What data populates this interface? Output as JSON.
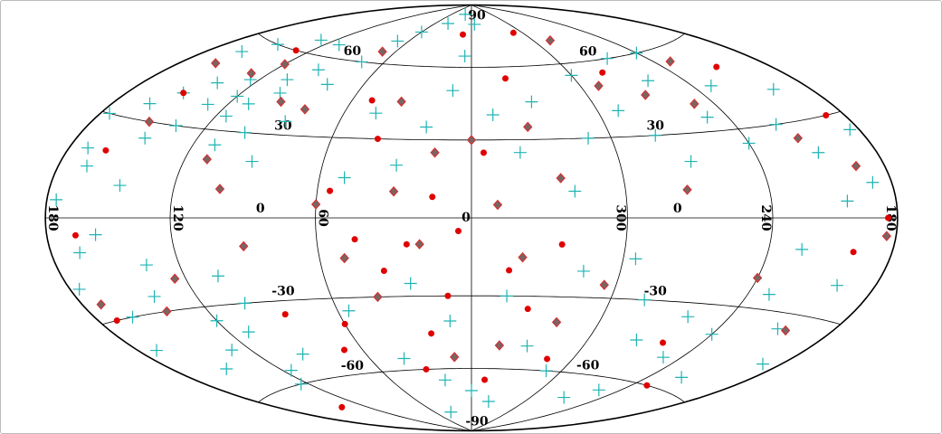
{
  "chart_data": {
    "type": "scatter",
    "projection": "hammer",
    "xticks": [
      {
        "value": 180,
        "label": "180"
      },
      120,
      60,
      0,
      {
        "value": -60,
        "label": "300"
      },
      {
        "value": -120,
        "label": "240"
      },
      {
        "value": -180,
        "label": "180"
      }
    ],
    "yticks": [
      90,
      60,
      30,
      0,
      -30,
      -60,
      -90
    ],
    "grid": true,
    "series": [
      {
        "marker": "cross",
        "color": "#1fb3b3",
        "x": [
          100,
          105,
          110,
          115,
          120,
          125,
          130,
          95,
          140,
          135,
          150,
          145,
          160,
          170,
          175,
          110,
          100,
          90,
          85,
          80,
          75,
          70,
          60,
          40,
          20,
          150,
          130,
          160,
          110,
          100,
          110,
          120,
          130,
          140,
          150,
          160,
          170,
          115,
          125,
          95,
          105,
          135,
          165,
          175,
          155,
          145,
          165,
          175,
          30,
          20,
          10,
          -10,
          -20,
          -30,
          45,
          50,
          -40,
          -50,
          25,
          10,
          -15,
          -30,
          40,
          55,
          -45,
          0,
          20,
          -20,
          35,
          -50,
          5,
          -5,
          -70,
          -80,
          -90,
          -100,
          -110,
          -120,
          -130,
          -140,
          -150,
          -160,
          -170,
          -175,
          -95,
          -120,
          -75,
          -85,
          -100,
          -110,
          -120,
          -130,
          -140,
          -150,
          -160,
          -170,
          -105,
          -90,
          -135,
          -155,
          -65,
          -60
        ],
        "y": [
          45,
          50,
          40,
          35,
          42,
          48,
          38,
          55,
          45,
          30,
          40,
          25,
          35,
          20,
          30,
          25,
          30,
          20,
          35,
          50,
          60,
          70,
          75,
          80,
          85,
          60,
          65,
          55,
          65,
          -30,
          -40,
          -35,
          -45,
          -25,
          -50,
          -30,
          -40,
          -55,
          -60,
          -50,
          -20,
          -15,
          -10,
          -20,
          -5,
          10,
          15,
          5,
          20,
          35,
          50,
          40,
          25,
          45,
          40,
          15,
          10,
          30,
          -25,
          -40,
          -30,
          -50,
          -55,
          -35,
          -20,
          -70,
          -65,
          -75,
          -80,
          -60,
          65,
          80,
          40,
          30,
          20,
          50,
          35,
          25,
          45,
          30,
          20,
          40,
          10,
          25,
          60,
          60,
          -30,
          -45,
          -35,
          -50,
          -40,
          -25,
          -55,
          -35,
          -20,
          -45,
          -65,
          -70,
          -10,
          5,
          -15,
          55
        ]
      },
      {
        "marker": "diamond",
        "color": "#7a6464",
        "edge": "#e02828",
        "x": [
          80,
          95,
          120,
          130,
          150,
          110,
          100,
          140,
          125,
          90,
          30,
          20,
          -10,
          -20,
          15,
          -35,
          -25,
          40,
          -40,
          10,
          -15,
          60,
          50,
          -55,
          -70,
          -90,
          -110,
          -130,
          -145,
          -165,
          -175,
          -155,
          -120,
          -85,
          70,
          -75,
          170,
          160,
          0,
          35
        ],
        "y": [
          40,
          42,
          55,
          50,
          30,
          20,
          10,
          -30,
          -20,
          -10,
          10,
          -10,
          5,
          -15,
          25,
          15,
          35,
          -30,
          -40,
          -55,
          -50,
          5,
          -15,
          -25,
          50,
          45,
          40,
          55,
          25,
          15,
          -5,
          -35,
          -20,
          10,
          65,
          70,
          -25,
          50,
          30,
          45
        ]
      },
      {
        "marker": "dot",
        "color": "#e00000",
        "x": [
          5,
          15,
          25,
          35,
          45,
          55,
          -5,
          -15,
          -25,
          -35,
          10,
          20,
          30,
          -45,
          -10,
          40,
          50,
          -20,
          60,
          70,
          85,
          150,
          160,
          165,
          170,
          130,
          -170,
          -160,
          -150,
          -175,
          -100,
          -80,
          10,
          -50,
          140,
          -130
        ],
        "y": [
          -5,
          8,
          -10,
          -20,
          -8,
          10,
          25,
          -20,
          -35,
          -10,
          -30,
          -45,
          -60,
          -55,
          -65,
          30,
          45,
          55,
          -40,
          -50,
          -35,
          40,
          20,
          -5,
          -30,
          60,
          30,
          -10,
          50,
          0,
          -45,
          55,
          75,
          75,
          -70,
          -60
        ]
      }
    ]
  }
}
